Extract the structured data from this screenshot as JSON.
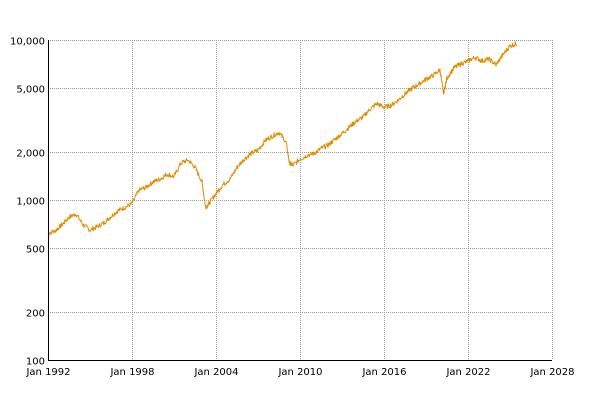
{
  "chart_data": {
    "type": "line",
    "title": "",
    "xlabel": "",
    "ylabel": "",
    "yscale": "log",
    "ylim": [
      100,
      10000
    ],
    "xlim": [
      "1992-01",
      "2028-01"
    ],
    "grid": true,
    "y_ticks": [
      {
        "value": 100,
        "label": "100"
      },
      {
        "value": 200,
        "label": "200"
      },
      {
        "value": 500,
        "label": "500"
      },
      {
        "value": 1000,
        "label": "1,000"
      },
      {
        "value": 2000,
        "label": "2,000"
      },
      {
        "value": 5000,
        "label": "5,000"
      },
      {
        "value": 10000,
        "label": "10,000"
      }
    ],
    "x_ticks": [
      {
        "value": "1992-01",
        "label": "Jan 1992"
      },
      {
        "value": "1998-01",
        "label": "Jan 1998"
      },
      {
        "value": "2004-01",
        "label": "Jan 2004"
      },
      {
        "value": "2010-01",
        "label": "Jan 2010"
      },
      {
        "value": "2016-01",
        "label": "Jan 2016"
      },
      {
        "value": "2022-01",
        "label": "Jan 2022"
      },
      {
        "value": "2028-01",
        "label": "Jan 2028"
      }
    ],
    "series": [
      {
        "color": "#e08c00",
        "points": [
          [
            "1992-01",
            620
          ],
          [
            "1992-07",
            640
          ],
          [
            "1993-01",
            700
          ],
          [
            "1993-07",
            780
          ],
          [
            "1994-01",
            820
          ],
          [
            "1994-07",
            700
          ],
          [
            "1995-01",
            650
          ],
          [
            "1995-07",
            680
          ],
          [
            "1996-01",
            720
          ],
          [
            "1996-07",
            790
          ],
          [
            "1997-01",
            860
          ],
          [
            "1997-07",
            900
          ],
          [
            "1998-01",
            950
          ],
          [
            "1998-07",
            1150
          ],
          [
            "1999-01",
            1200
          ],
          [
            "1999-07",
            1300
          ],
          [
            "2000-01",
            1350
          ],
          [
            "2000-07",
            1450
          ],
          [
            "2001-01",
            1400
          ],
          [
            "2001-07",
            1700
          ],
          [
            "2002-01",
            1780
          ],
          [
            "2002-07",
            1600
          ],
          [
            "2003-01",
            1300
          ],
          [
            "2003-04",
            900
          ],
          [
            "2003-07",
            950
          ],
          [
            "2004-01",
            1100
          ],
          [
            "2004-07",
            1250
          ],
          [
            "2005-01",
            1350
          ],
          [
            "2005-07",
            1600
          ],
          [
            "2006-01",
            1800
          ],
          [
            "2006-07",
            1950
          ],
          [
            "2007-01",
            2050
          ],
          [
            "2007-07",
            2350
          ],
          [
            "2008-01",
            2500
          ],
          [
            "2008-07",
            2650
          ],
          [
            "2009-01",
            2300
          ],
          [
            "2009-04",
            1700
          ],
          [
            "2009-07",
            1650
          ],
          [
            "2010-01",
            1800
          ],
          [
            "2010-07",
            1900
          ],
          [
            "2011-01",
            1950
          ],
          [
            "2011-07",
            2100
          ],
          [
            "2012-01",
            2200
          ],
          [
            "2012-07",
            2400
          ],
          [
            "2013-01",
            2600
          ],
          [
            "2013-07",
            2850
          ],
          [
            "2014-01",
            3100
          ],
          [
            "2014-07",
            3300
          ],
          [
            "2015-01",
            3700
          ],
          [
            "2015-07",
            4000
          ],
          [
            "2016-01",
            3800
          ],
          [
            "2016-07",
            3900
          ],
          [
            "2017-01",
            4200
          ],
          [
            "2017-07",
            4600
          ],
          [
            "2018-01",
            5000
          ],
          [
            "2018-07",
            5300
          ],
          [
            "2019-01",
            5700
          ],
          [
            "2019-07",
            6000
          ],
          [
            "2020-01",
            6500
          ],
          [
            "2020-04",
            4600
          ],
          [
            "2020-07",
            5800
          ],
          [
            "2021-01",
            6700
          ],
          [
            "2021-07",
            7100
          ],
          [
            "2022-01",
            7400
          ],
          [
            "2022-07",
            7800
          ],
          [
            "2023-01",
            7400
          ],
          [
            "2023-07",
            7600
          ],
          [
            "2024-01",
            7000
          ],
          [
            "2024-07",
            8100
          ],
          [
            "2025-01",
            9200
          ],
          [
            "2025-07",
            9500
          ]
        ]
      }
    ]
  }
}
